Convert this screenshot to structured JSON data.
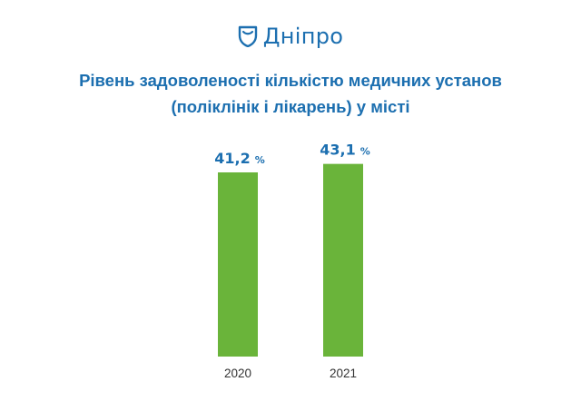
{
  "logo": {
    "icon": "dnipro-shield-icon",
    "text": "Дніпро"
  },
  "colors": {
    "brand": "#1c6fb0",
    "bar": "#6ab43a",
    "axis_text": "#333333"
  },
  "chart_data": {
    "type": "bar",
    "title_lines": [
      "Рівень задоволеності кількістю медичних установ",
      "(поліклінік і лікарень) у місті"
    ],
    "categories": [
      "2020",
      "2021"
    ],
    "values": [
      41.2,
      43.1
    ],
    "value_labels": [
      "41,2",
      "43,1"
    ],
    "unit": "%",
    "xlabel": "",
    "ylabel": "",
    "grid": false,
    "legend": "none"
  }
}
